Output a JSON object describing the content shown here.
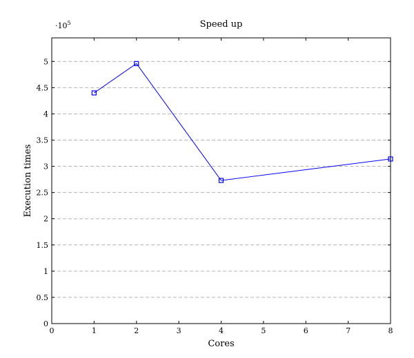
{
  "chart_data": {
    "type": "line",
    "title": "Speed up",
    "xlabel": "Cores",
    "ylabel": "Execution times",
    "y_scale_multiplier": {
      "base": "·10",
      "exponent": "5"
    },
    "xlim": [
      0,
      8
    ],
    "ylim": [
      0,
      5.45
    ],
    "x_ticks": [
      0,
      1,
      2,
      3,
      4,
      5,
      6,
      7,
      8
    ],
    "y_ticks": [
      0,
      0.5,
      1,
      1.5,
      2,
      2.5,
      3,
      3.5,
      4,
      4.5,
      5
    ],
    "grid": "y-major-dashed",
    "series": [
      {
        "color": "#0000ff",
        "marker": "square",
        "x": [
          1,
          2,
          4,
          8
        ],
        "y": [
          4.4,
          4.96,
          2.73,
          3.14
        ]
      }
    ]
  }
}
